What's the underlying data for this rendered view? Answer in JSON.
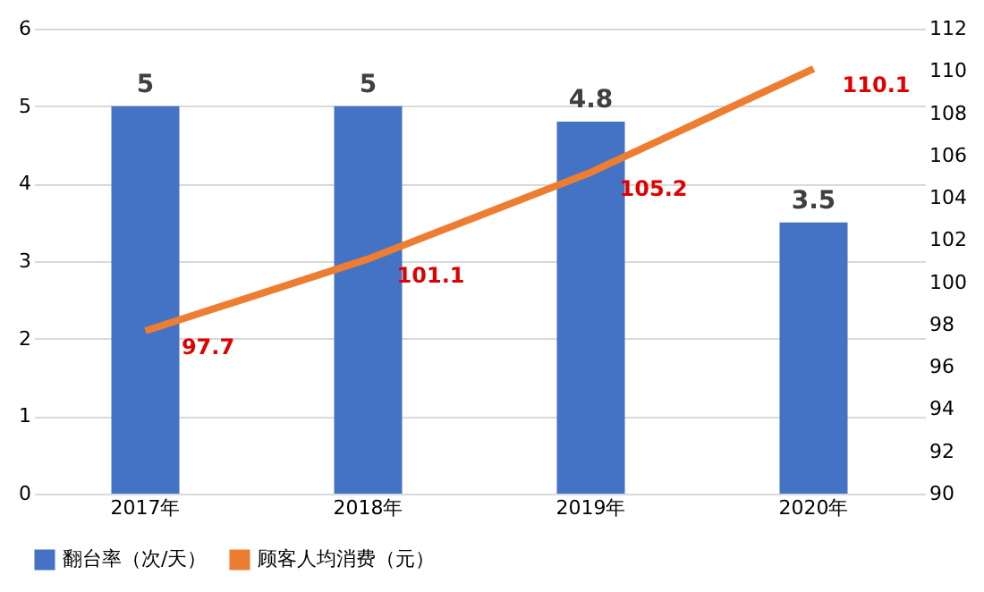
{
  "chart_data": {
    "type": "bar",
    "categories": [
      "2017年",
      "2018年",
      "2019年",
      "2020年"
    ],
    "series": [
      {
        "name": "翻台率（次/天）",
        "color": "#4472c4",
        "values": [
          5,
          5,
          4.8,
          3.5
        ]
      },
      {
        "name": "顾客人均消费（元）",
        "color": "#ed7d31",
        "values": [
          97.7,
          101.1,
          105.2,
          110.1
        ],
        "type": "line",
        "axis": "y2"
      }
    ],
    "ylim": [
      0,
      6
    ],
    "yticks": [
      0,
      1,
      2,
      3,
      4,
      5,
      6
    ],
    "y2lim": [
      90,
      112
    ],
    "y2ticks": [
      90,
      92,
      94,
      96,
      98,
      100,
      102,
      104,
      106,
      108,
      110,
      112
    ],
    "data_labels": true,
    "grid": "y",
    "legend": "bottom",
    "marker": "none",
    "line_style": "solid"
  }
}
